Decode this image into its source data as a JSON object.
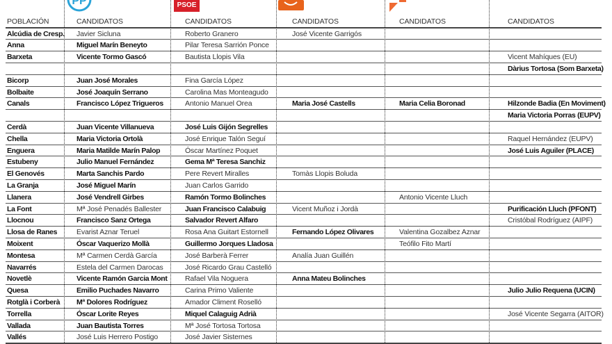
{
  "logos": {
    "pp": {
      "label": "PP",
      "color": "#2aa3d8"
    },
    "psoe": {
      "label": "PSOE",
      "color": "#d7202a"
    },
    "cs": {
      "label": "Cs",
      "color": "#e8631c"
    },
    "compromis": {
      "label": "Compromís",
      "color": "#ef6a32"
    }
  },
  "headers": [
    "POBLACIÓN",
    "CANDIDATOS",
    "CANDIDATOS",
    "CANDIDATOS",
    "CANDIDATOS",
    "CANDIDATOS"
  ],
  "rows": [
    [
      {
        "t": "Alcúdia de Cresp.",
        "b": true
      },
      {
        "t": "Javier Sicluna",
        "b": false
      },
      {
        "t": "Roberto Granero",
        "b": false
      },
      {
        "t": "José Vicente Garrigós",
        "b": false
      },
      {
        "t": "",
        "b": false
      },
      {
        "t": "",
        "b": false
      }
    ],
    [
      {
        "t": "Anna",
        "b": true
      },
      {
        "t": "Miguel Marín Beneyto",
        "b": true
      },
      {
        "t": "Pilar Teresa Sarrión Ponce",
        "b": false
      },
      {
        "t": "",
        "b": false
      },
      {
        "t": "",
        "b": false
      },
      {
        "t": "",
        "b": false
      }
    ],
    [
      {
        "t": "Barxeta",
        "b": true
      },
      {
        "t": "Vicente Tormo Gascó",
        "b": true
      },
      {
        "t": "Bautista Llopis Vila",
        "b": false
      },
      {
        "t": "",
        "b": false
      },
      {
        "t": "",
        "b": false
      },
      {
        "t": "Vicent Mahíques (EU)",
        "b": false
      }
    ],
    [
      {
        "t": "",
        "b": false
      },
      {
        "t": "",
        "b": false
      },
      {
        "t": "",
        "b": false
      },
      {
        "t": "",
        "b": false
      },
      {
        "t": "",
        "b": false
      },
      {
        "t": "Dàrius Tortosa (Som Barxeta)",
        "b": true
      }
    ],
    [
      {
        "t": "Bicorp",
        "b": true
      },
      {
        "t": "Juan José Morales",
        "b": true
      },
      {
        "t": "Fina García López",
        "b": false
      },
      {
        "t": "",
        "b": false
      },
      {
        "t": "",
        "b": false
      },
      {
        "t": "",
        "b": false
      }
    ],
    [
      {
        "t": "Bolbaite",
        "b": true
      },
      {
        "t": "José Joaquín Serrano",
        "b": true
      },
      {
        "t": "Carolina Mas Monteagudo",
        "b": false
      },
      {
        "t": "",
        "b": false
      },
      {
        "t": "",
        "b": false
      },
      {
        "t": "",
        "b": false
      }
    ],
    [
      {
        "t": "Canals",
        "b": true
      },
      {
        "t": "Francisco López Trigueros",
        "b": true
      },
      {
        "t": "Antonio Manuel Orea",
        "b": false
      },
      {
        "t": "Maria José Castells",
        "b": true
      },
      {
        "t": "Maria Celia Boronad",
        "b": true
      },
      {
        "t": "Hilzonde Badia (En Moviment)",
        "b": true
      }
    ],
    [
      {
        "t": "",
        "b": false
      },
      {
        "t": "",
        "b": false
      },
      {
        "t": "",
        "b": false
      },
      {
        "t": "",
        "b": false
      },
      {
        "t": "",
        "b": false
      },
      {
        "t": "Maria Victoria Porras (EUPV)",
        "b": true
      }
    ],
    [
      {
        "t": "Cerdà",
        "b": true
      },
      {
        "t": "Juan Vicente Villanueva",
        "b": true
      },
      {
        "t": "José Luis Gijón Segrelles",
        "b": true
      },
      {
        "t": "",
        "b": false
      },
      {
        "t": "",
        "b": false
      },
      {
        "t": "",
        "b": false
      }
    ],
    [
      {
        "t": "Chella",
        "b": true
      },
      {
        "t": "Maria Victoria Ortolà",
        "b": true
      },
      {
        "t": "José Enrique Talón Seguí",
        "b": false
      },
      {
        "t": "",
        "b": false
      },
      {
        "t": "",
        "b": false
      },
      {
        "t": "Raquel Hernández (EUPV)",
        "b": false
      }
    ],
    [
      {
        "t": "Enguera",
        "b": true
      },
      {
        "t": "Maria Matilde Marín  Palop",
        "b": true
      },
      {
        "t": "Óscar Martínez Poquet",
        "b": false
      },
      {
        "t": "",
        "b": false
      },
      {
        "t": "",
        "b": false
      },
      {
        "t": "José Luis Aguiler (PLACE)",
        "b": true
      }
    ],
    [
      {
        "t": "Estubeny",
        "b": true
      },
      {
        "t": "Julio Manuel  Fernández",
        "b": true
      },
      {
        "t": "Gema Mª Teresa Sanchiz",
        "b": true
      },
      {
        "t": "",
        "b": false
      },
      {
        "t": "",
        "b": false
      },
      {
        "t": "",
        "b": false
      }
    ],
    [
      {
        "t": "El Genovés",
        "b": true
      },
      {
        "t": "Marta Sanchis Pardo",
        "b": true
      },
      {
        "t": "Pere Revert Miralles",
        "b": false
      },
      {
        "t": "Tomàs Llopis Boluda",
        "b": false
      },
      {
        "t": "",
        "b": false
      },
      {
        "t": "",
        "b": false
      }
    ],
    [
      {
        "t": "La Granja",
        "b": true
      },
      {
        "t": "José Miguel Marín",
        "b": true
      },
      {
        "t": "Juan Carlos Garrido",
        "b": false
      },
      {
        "t": "",
        "b": false
      },
      {
        "t": "",
        "b": false
      },
      {
        "t": "",
        "b": false
      }
    ],
    [
      {
        "t": "Llanera",
        "b": true
      },
      {
        "t": "José Vendrell Girbes",
        "b": true
      },
      {
        "t": "Ramón Tormo Bolinches",
        "b": true
      },
      {
        "t": "",
        "b": false
      },
      {
        "t": "Antonio Vicente Lluch",
        "b": false
      },
      {
        "t": "",
        "b": false
      }
    ],
    [
      {
        "t": "La Font",
        "b": true
      },
      {
        "t": "Mª José Penadés Ballester",
        "b": false
      },
      {
        "t": "Juan Francisco  Calabuig",
        "b": true
      },
      {
        "t": "Vicent Muñoz i Jordà",
        "b": false
      },
      {
        "t": "",
        "b": false
      },
      {
        "t": "Purificación Lluch (PFONT)",
        "b": true
      }
    ],
    [
      {
        "t": "Llocnou",
        "b": true
      },
      {
        "t": "Francisco Sanz Ortega",
        "b": true
      },
      {
        "t": "Salvador Revert Alfaro",
        "b": true
      },
      {
        "t": "",
        "b": false
      },
      {
        "t": "",
        "b": false
      },
      {
        "t": "Cristóbal Rodríguez (AIPF)",
        "b": false
      }
    ],
    [
      {
        "t": "Llosa de Ranes",
        "b": true
      },
      {
        "t": "Evarist Aznar Teruel",
        "b": false
      },
      {
        "t": "Rosa Ana Guitart Estornell",
        "b": false
      },
      {
        "t": "Fernando López Olivares",
        "b": true
      },
      {
        "t": "Valentina Gozalbez Aznar",
        "b": false
      },
      {
        "t": "",
        "b": false
      }
    ],
    [
      {
        "t": "Moixent",
        "b": true
      },
      {
        "t": "Óscar Vaquerizo Mollà",
        "b": true
      },
      {
        "t": "Guillermo Jorques Lladosa",
        "b": true
      },
      {
        "t": "",
        "b": false
      },
      {
        "t": "Teófilo Fito Martí",
        "b": false
      },
      {
        "t": "",
        "b": false
      }
    ],
    [
      {
        "t": "Montesa",
        "b": true
      },
      {
        "t": "Mª Carmen Cerdà García",
        "b": false
      },
      {
        "t": "José Barberà Ferrer",
        "b": false
      },
      {
        "t": "Analía Juan Guillén",
        "b": false
      },
      {
        "t": "",
        "b": false
      },
      {
        "t": "",
        "b": false
      }
    ],
    [
      {
        "t": "Navarrés",
        "b": true
      },
      {
        "t": "Estela del Carmen Darocas",
        "b": false
      },
      {
        "t": "José Ricardo Grau Castelló",
        "b": false
      },
      {
        "t": "",
        "b": false
      },
      {
        "t": "",
        "b": false
      },
      {
        "t": "",
        "b": false
      }
    ],
    [
      {
        "t": "Novetlè",
        "b": true
      },
      {
        "t": "Vicente Ramón  Garcia Mont",
        "b": true
      },
      {
        "t": "Rafael Vila Noguera",
        "b": false
      },
      {
        "t": "Anna Mateu Bolinches",
        "b": true
      },
      {
        "t": "",
        "b": false
      },
      {
        "t": "",
        "b": false
      }
    ],
    [
      {
        "t": "Quesa",
        "b": true
      },
      {
        "t": "Emilio Puchades Navarro",
        "b": true
      },
      {
        "t": "Carina Primo Valiente",
        "b": false
      },
      {
        "t": "",
        "b": false
      },
      {
        "t": "",
        "b": false
      },
      {
        "t": "Julio Julio Requena (UCIN)",
        "b": true
      }
    ],
    [
      {
        "t": "Rotglà i Corberà",
        "b": true
      },
      {
        "t": "Mª Dolores Rodríguez",
        "b": true
      },
      {
        "t": "Amador Climent Roselló",
        "b": false
      },
      {
        "t": "",
        "b": false
      },
      {
        "t": "",
        "b": false
      },
      {
        "t": "",
        "b": false
      }
    ],
    [
      {
        "t": "Torrella",
        "b": true
      },
      {
        "t": "Óscar Lorite Reyes",
        "b": true
      },
      {
        "t": "Miquel  Calaguig Adrià",
        "b": true
      },
      {
        "t": "",
        "b": false
      },
      {
        "t": "",
        "b": false
      },
      {
        "t": "José Vicente Segarra (AITOR)",
        "b": false
      }
    ],
    [
      {
        "t": "Vallada",
        "b": true
      },
      {
        "t": "Juan Bautista Torres",
        "b": true
      },
      {
        "t": "Mª José Tortosa Tortosa",
        "b": false
      },
      {
        "t": "",
        "b": false
      },
      {
        "t": "",
        "b": false
      },
      {
        "t": "",
        "b": false
      }
    ],
    [
      {
        "t": "Vallés",
        "b": true
      },
      {
        "t": "José Luis Herrero Postigo",
        "b": false
      },
      {
        "t": "José Javier Sisternes",
        "b": false
      },
      {
        "t": "",
        "b": false
      },
      {
        "t": "",
        "b": false
      },
      {
        "t": "",
        "b": false
      }
    ]
  ]
}
